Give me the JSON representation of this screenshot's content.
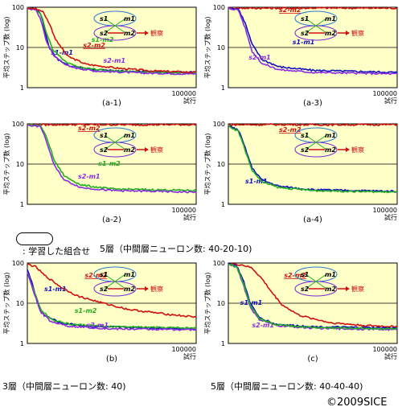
{
  "common": {
    "ylabel": "平均ステップ数 (log)",
    "xtick_end": "100000",
    "xlabel": "試行",
    "yticks": [
      "100",
      "10",
      "1"
    ],
    "diagram_nodes": [
      "s1",
      "m1",
      "s2",
      "m2"
    ],
    "diagram_output": "観察",
    "colors": {
      "s1m1": "#1010c0",
      "s2m2": "#d01010",
      "s1m2": "#20b020",
      "s2m1": "#8a2be2",
      "plot_bg": "#ffffc8",
      "hline": "#000000"
    }
  },
  "captions": {
    "five_layer_a": "5層（中間層ニューロン数: 40-20-10)",
    "three_layer_b": "3層（中間層ニューロン数: 40)",
    "five_layer_c": "5層（中間層ニューロン数: 40-40-40)"
  },
  "legend_note": ": 学習した組合せ",
  "copyright": "©2009SICE",
  "chart_data": [
    {
      "id": "a-1",
      "label": "(a-1)",
      "type": "line",
      "x_range": [
        0,
        100000
      ],
      "y_range": [
        1,
        100
      ],
      "y_scale": "log",
      "learned_pairs": [
        "s1-m1",
        "s2-m2"
      ],
      "series": [
        {
          "name": "s1-m1",
          "color_key": "s1m1",
          "label": "s1-m1",
          "points": [
            [
              0,
              95
            ],
            [
              5000,
              90
            ],
            [
              8000,
              70
            ],
            [
              10000,
              30
            ],
            [
              13000,
              10
            ],
            [
              18000,
              5
            ],
            [
              25000,
              3.5
            ],
            [
              40000,
              2.8
            ],
            [
              60000,
              2.5
            ],
            [
              100000,
              2.4
            ]
          ]
        },
        {
          "name": "s1-m2",
          "color_key": "s1m2",
          "label": "s1-m2",
          "points": [
            [
              0,
              95
            ],
            [
              5000,
              90
            ],
            [
              8000,
              70
            ],
            [
              11000,
              25
            ],
            [
              15000,
              9
            ],
            [
              22000,
              4.5
            ],
            [
              30000,
              3.2
            ],
            [
              50000,
              2.6
            ],
            [
              100000,
              2.3
            ]
          ]
        },
        {
          "name": "s2-m1",
          "color_key": "s2m1",
          "label": "s2-m1",
          "points": [
            [
              0,
              95
            ],
            [
              5000,
              85
            ],
            [
              8000,
              50
            ],
            [
              11000,
              15
            ],
            [
              16000,
              6
            ],
            [
              25000,
              3.3
            ],
            [
              40000,
              2.6
            ],
            [
              70000,
              2.3
            ],
            [
              100000,
              2.2
            ]
          ]
        },
        {
          "name": "s2-m2",
          "color_key": "s2m2",
          "label": "s2-m2",
          "points": [
            [
              0,
              95
            ],
            [
              5000,
              92
            ],
            [
              9000,
              80
            ],
            [
              13000,
              40
            ],
            [
              17000,
              15
            ],
            [
              24000,
              6
            ],
            [
              35000,
              3.8
            ],
            [
              55000,
              3
            ],
            [
              75000,
              2.6
            ],
            [
              100000,
              2.4
            ]
          ]
        }
      ]
    },
    {
      "id": "a-3",
      "label": "(a-3)",
      "type": "line",
      "x_range": [
        0,
        100000
      ],
      "y_range": [
        1,
        100
      ],
      "y_scale": "log",
      "learned_pairs": [
        "s1-m1",
        "s2-m2"
      ],
      "series": [
        {
          "name": "s2-m2",
          "color_key": "s2m2",
          "label": "s2-m2",
          "points": [
            [
              0,
              95
            ],
            [
              20000,
              95
            ],
            [
              50000,
              96
            ],
            [
              100000,
              95
            ]
          ]
        },
        {
          "name": "s1-m1",
          "color_key": "s1m1",
          "label": "s1-m1",
          "points": [
            [
              0,
              95
            ],
            [
              6000,
              90
            ],
            [
              10000,
              40
            ],
            [
              14000,
              12
            ],
            [
              20000,
              5
            ],
            [
              30000,
              3.3
            ],
            [
              50000,
              2.7
            ],
            [
              100000,
              2.4
            ]
          ]
        },
        {
          "name": "s2-m1",
          "color_key": "s2m1",
          "label": "s2-m1",
          "points": [
            [
              0,
              95
            ],
            [
              6000,
              85
            ],
            [
              10000,
              30
            ],
            [
              14000,
              8
            ],
            [
              20000,
              4
            ],
            [
              30000,
              2.8
            ],
            [
              50000,
              2.4
            ],
            [
              100000,
              2.2
            ]
          ]
        }
      ]
    },
    {
      "id": "a-2",
      "label": "(a-2)",
      "type": "line",
      "x_range": [
        0,
        100000
      ],
      "y_range": [
        1,
        100
      ],
      "y_scale": "log",
      "learned_pairs": [
        "s1-m1",
        "s2-m2"
      ],
      "series": [
        {
          "name": "s2-m2",
          "color_key": "s2m2",
          "label": "s2-m2",
          "points": [
            [
              0,
              95
            ],
            [
              30000,
              96
            ],
            [
              60000,
              95
            ],
            [
              100000,
              96
            ]
          ]
        },
        {
          "name": "s1-m2",
          "color_key": "s1m2",
          "label": "s1-m2",
          "points": [
            [
              0,
              95
            ],
            [
              8000,
              90
            ],
            [
              12000,
              40
            ],
            [
              16000,
              12
            ],
            [
              22000,
              5
            ],
            [
              32000,
              3
            ],
            [
              50000,
              2.4
            ],
            [
              100000,
              2.2
            ]
          ]
        },
        {
          "name": "s2-m1",
          "color_key": "s2m1",
          "label": "s2-m1",
          "points": [
            [
              0,
              95
            ],
            [
              8000,
              85
            ],
            [
              12000,
              30
            ],
            [
              16000,
              9
            ],
            [
              22000,
              4
            ],
            [
              32000,
              2.6
            ],
            [
              50000,
              2.2
            ],
            [
              100000,
              2.0
            ]
          ]
        }
      ]
    },
    {
      "id": "a-4",
      "label": "(a-4)",
      "type": "line",
      "x_range": [
        0,
        100000
      ],
      "y_range": [
        1,
        100
      ],
      "y_scale": "log",
      "learned_pairs": [
        "s1-m1",
        "s2-m2"
      ],
      "series": [
        {
          "name": "s2-m2",
          "color_key": "s2m2",
          "label": "s2-m2",
          "points": [
            [
              0,
              95
            ],
            [
              30000,
              96
            ],
            [
              60000,
              95
            ],
            [
              100000,
              96
            ]
          ]
        },
        {
          "name": "s1-m1",
          "color_key": "s1m1",
          "label": "s1-m1",
          "points": [
            [
              0,
              90
            ],
            [
              6000,
              70
            ],
            [
              10000,
              25
            ],
            [
              14000,
              8
            ],
            [
              20000,
              4
            ],
            [
              30000,
              2.8
            ],
            [
              50000,
              2.3
            ],
            [
              100000,
              2.1
            ]
          ]
        },
        {
          "name": "s1-m2",
          "color_key": "s1m2",
          "label": "",
          "points": [
            [
              0,
              90
            ],
            [
              6000,
              65
            ],
            [
              10000,
              22
            ],
            [
              14000,
              7
            ],
            [
              20000,
              3.6
            ],
            [
              30000,
              2.6
            ],
            [
              50000,
              2.2
            ],
            [
              100000,
              2.0
            ]
          ]
        }
      ]
    },
    {
      "id": "b",
      "label": "(b)",
      "type": "line",
      "x_range": [
        0,
        100000
      ],
      "y_range": [
        1,
        100
      ],
      "y_scale": "log",
      "learned_pairs": [
        "s1-m1",
        "s2-m2"
      ],
      "series": [
        {
          "name": "s2-m2",
          "color_key": "s2m2",
          "label": "s2-m2",
          "points": [
            [
              0,
              95
            ],
            [
              5000,
              80
            ],
            [
              10000,
              50
            ],
            [
              20000,
              25
            ],
            [
              30000,
              15
            ],
            [
              45000,
              10
            ],
            [
              60000,
              7
            ],
            [
              80000,
              5.5
            ],
            [
              100000,
              4.5
            ]
          ]
        },
        {
          "name": "s1-m1",
          "color_key": "s1m1",
          "label": "s1-m1",
          "points": [
            [
              0,
              70
            ],
            [
              3000,
              30
            ],
            [
              6000,
              10
            ],
            [
              10000,
              5
            ],
            [
              20000,
              3.2
            ],
            [
              40000,
              2.6
            ],
            [
              100000,
              2.3
            ]
          ]
        },
        {
          "name": "s1-m2",
          "color_key": "s1m2",
          "label": "s1-m2",
          "points": [
            [
              0,
              60
            ],
            [
              4000,
              20
            ],
            [
              8000,
              7
            ],
            [
              14000,
              4
            ],
            [
              25000,
              3
            ],
            [
              50000,
              2.6
            ],
            [
              100000,
              2.4
            ]
          ]
        },
        {
          "name": "s2-m1",
          "color_key": "s2m1",
          "label": "s2-m1",
          "points": [
            [
              0,
              60
            ],
            [
              4000,
              18
            ],
            [
              8000,
              6
            ],
            [
              14000,
              3.5
            ],
            [
              25000,
              2.7
            ],
            [
              50000,
              2.3
            ],
            [
              100000,
              2.2
            ]
          ]
        }
      ]
    },
    {
      "id": "c",
      "label": "(c)",
      "type": "line",
      "x_range": [
        0,
        100000
      ],
      "y_range": [
        1,
        100
      ],
      "y_scale": "log",
      "learned_pairs": [
        "s1-m1",
        "s2-m2"
      ],
      "series": [
        {
          "name": "s2-m2",
          "color_key": "s2m2",
          "label": "s2-m2",
          "points": [
            [
              0,
              95
            ],
            [
              8000,
              90
            ],
            [
              14000,
              75
            ],
            [
              20000,
              40
            ],
            [
              26000,
              18
            ],
            [
              32000,
              9
            ],
            [
              42000,
              5
            ],
            [
              60000,
              3.3
            ],
            [
              80000,
              2.8
            ],
            [
              100000,
              2.6
            ]
          ]
        },
        {
          "name": "s1-m1",
          "color_key": "s1m1",
          "label": "s1-m1",
          "points": [
            [
              0,
              95
            ],
            [
              5000,
              85
            ],
            [
              9000,
              35
            ],
            [
              13000,
              10
            ],
            [
              18000,
              4.5
            ],
            [
              28000,
              3
            ],
            [
              50000,
              2.6
            ],
            [
              100000,
              2.4
            ]
          ]
        },
        {
          "name": "s2-m1",
          "color_key": "s2m1",
          "label": "s2-m1",
          "points": [
            [
              0,
              95
            ],
            [
              5000,
              80
            ],
            [
              9000,
              28
            ],
            [
              13000,
              8
            ],
            [
              18000,
              4
            ],
            [
              28000,
              2.8
            ],
            [
              50000,
              2.4
            ],
            [
              100000,
              2.2
            ]
          ]
        },
        {
          "name": "s1-m2",
          "color_key": "s1m2",
          "label": "",
          "points": [
            [
              0,
              95
            ],
            [
              5000,
              82
            ],
            [
              9000,
              30
            ],
            [
              13000,
              9
            ],
            [
              18000,
              4.2
            ],
            [
              28000,
              2.9
            ],
            [
              50000,
              2.5
            ],
            [
              100000,
              2.3
            ]
          ]
        }
      ]
    }
  ]
}
